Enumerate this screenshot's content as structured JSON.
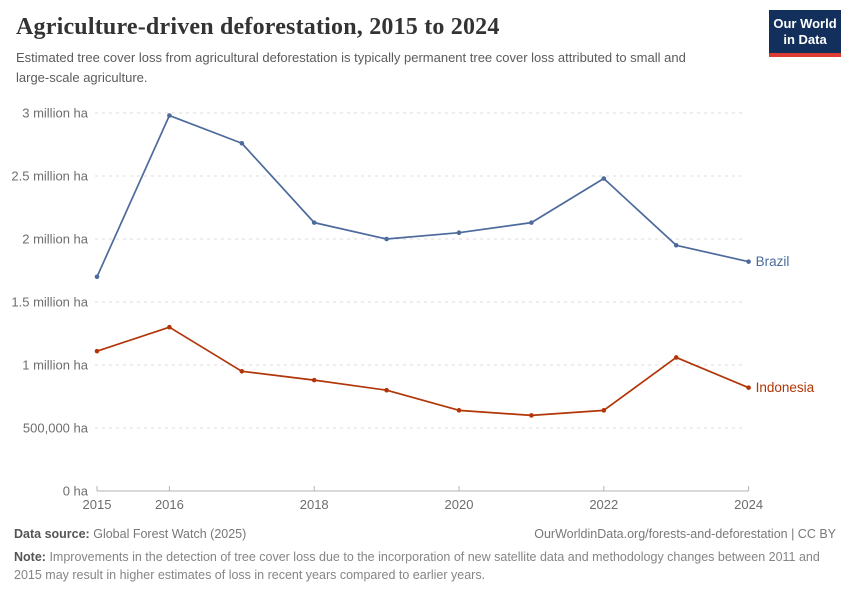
{
  "header": {
    "title": "Agriculture-driven deforestation, 2015 to 2024",
    "subtitle": "Estimated tree cover loss from agricultural deforestation is typically permanent tree cover loss attributed to small and large-scale agriculture.",
    "logo": {
      "line1": "Our World",
      "line2": "in Data",
      "bg_color": "#12305B",
      "accent_color": "#DC3B32"
    }
  },
  "chart_data": {
    "type": "line",
    "title": "Agriculture-driven deforestation, 2015 to 2024",
    "x": [
      2015,
      2016,
      2017,
      2018,
      2019,
      2020,
      2021,
      2022,
      2023,
      2024
    ],
    "series": [
      {
        "name": "Brazil",
        "color": "#4C6A9C",
        "values": [
          1700000,
          2980000,
          2760000,
          2130000,
          2000000,
          2050000,
          2130000,
          2480000,
          1950000,
          1820000
        ]
      },
      {
        "name": "Indonesia",
        "color": "#B13507",
        "values": [
          1110000,
          1300000,
          950000,
          880000,
          800000,
          640000,
          600000,
          640000,
          1060000,
          820000
        ]
      }
    ],
    "xlabel": "",
    "ylabel": "",
    "ylim": [
      0,
      3000000
    ],
    "yticks": [
      {
        "value": 0,
        "label": "0 ha"
      },
      {
        "value": 500000,
        "label": "500,000 ha"
      },
      {
        "value": 1000000,
        "label": "1 million ha"
      },
      {
        "value": 1500000,
        "label": "1.5 million ha"
      },
      {
        "value": 2000000,
        "label": "2 million ha"
      },
      {
        "value": 2500000,
        "label": "2.5 million ha"
      },
      {
        "value": 3000000,
        "label": "3 million ha"
      }
    ],
    "xticks": [
      2015,
      2016,
      2018,
      2020,
      2022,
      2024
    ],
    "grid": "horizontal-dashed",
    "legend_position": "end-of-line-labels",
    "grid_color": "#dcdcdc",
    "axis_color": "#b3b3b3",
    "tick_label_color": "#6e6e6e"
  },
  "footer": {
    "datasource_label": "Data source:",
    "datasource_value": "Global Forest Watch (2025)",
    "link": "OurWorldinData.org/forests-and-deforestation | CC BY",
    "note_label": "Note:",
    "note_value": "Improvements in the detection of tree cover loss due to the incorporation of new satellite data and methodology changes between 2011 and 2015 may result in higher estimates of loss in recent years compared to earlier years."
  }
}
